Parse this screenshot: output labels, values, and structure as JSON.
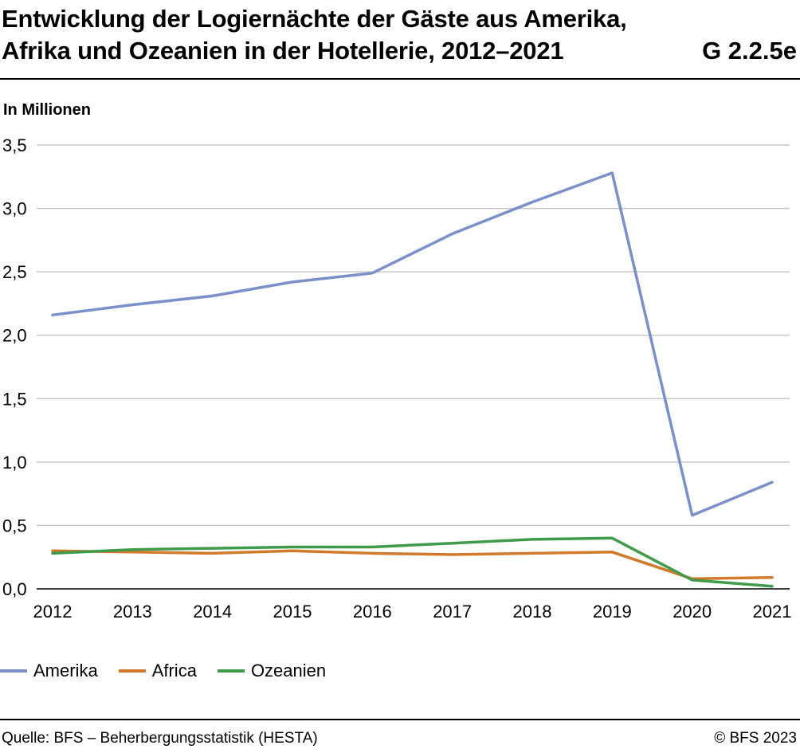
{
  "header": {
    "title_line1": "Entwicklung der Logiernächte der Gäste aus Amerika,",
    "title_line2": "Afrika und Ozeanien in der Hotellerie, 2012–2021",
    "chart_id": "G 2.2.5e",
    "unit_label": "In Millionen"
  },
  "footer": {
    "source": "Quelle: BFS – Beherbergungsstatistik (HESTA)",
    "copyright": "© BFS 2023"
  },
  "legend": {
    "items": [
      {
        "label": "Amerika",
        "color": "#7b8fcb"
      },
      {
        "label": "Africa",
        "color": "#d2792b"
      },
      {
        "label": "Ozeanien",
        "color": "#3f9b4a"
      }
    ]
  },
  "chart_data": {
    "type": "line",
    "title": "Entwicklung der Logiernächte der Gäste aus Amerika, Afrika und Ozeanien in der Hotellerie, 2012–2021",
    "ylabel": "In Millionen",
    "xlabel": "",
    "categories": [
      "2012",
      "2013",
      "2014",
      "2015",
      "2016",
      "2017",
      "2018",
      "2019",
      "2020",
      "2021"
    ],
    "ylim": [
      0,
      3.5
    ],
    "yticks": [
      "0,0",
      "0,5",
      "1,0",
      "1,5",
      "2,0",
      "2,5",
      "3,0",
      "3,5"
    ],
    "grid": true,
    "legend_position": "bottom-left",
    "series": [
      {
        "name": "Amerika",
        "color": "#7b8fcb",
        "values": [
          2.16,
          2.24,
          2.31,
          2.42,
          2.49,
          2.8,
          3.05,
          3.28,
          0.58,
          0.84
        ]
      },
      {
        "name": "Africa",
        "color": "#d2792b",
        "values": [
          0.3,
          0.29,
          0.28,
          0.3,
          0.28,
          0.27,
          0.28,
          0.29,
          0.08,
          0.09
        ]
      },
      {
        "name": "Ozeanien",
        "color": "#3f9b4a",
        "values": [
          0.28,
          0.31,
          0.32,
          0.33,
          0.33,
          0.36,
          0.39,
          0.4,
          0.07,
          0.02
        ]
      }
    ]
  }
}
